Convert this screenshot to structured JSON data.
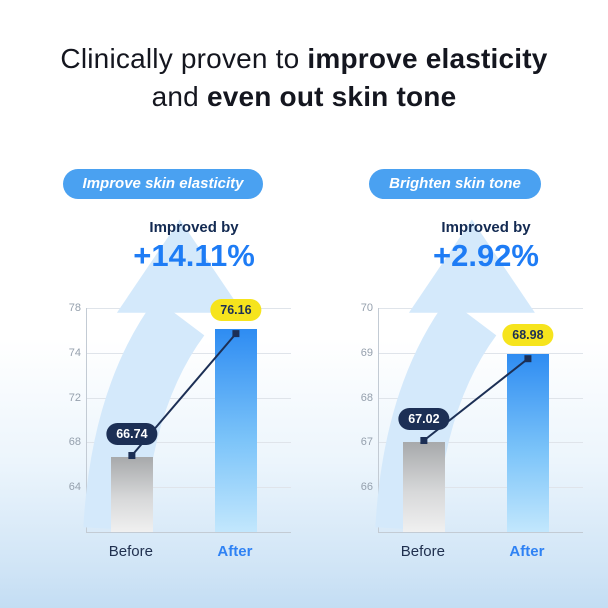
{
  "title": {
    "l1a": "Clinically proven to ",
    "l1b": "improve elasticity",
    "l2a": "and ",
    "l2b": "even out skin tone"
  },
  "colors": {
    "accent_blue": "#1e7cf5",
    "badge_blue": "#4aa1f1",
    "navy": "#1c2f55",
    "yellow": "#f6e41d",
    "bar_gray_top": "#a7a9ab",
    "bar_gray_bottom": "#f0f0f0",
    "bar_blue_top": "#2e8cf2",
    "bar_blue_bottom": "#c2e7fd",
    "arrow_blue": "#d4e9fb",
    "grid": "#dfe4ea",
    "axis": "#c3cbd4",
    "tick_text": "#95a0ad"
  },
  "chart_data": [
    {
      "type": "bar",
      "badge": "Improve skin elasticity",
      "improved_by": "Improved by",
      "improvement": "+14.11%",
      "categories": [
        "Before",
        "After"
      ],
      "values": [
        66.74,
        76.16
      ],
      "value_labels": [
        "66.74",
        "76.16"
      ],
      "yticks": [
        78,
        74,
        72,
        68,
        64
      ],
      "ylim": [
        60,
        78
      ],
      "grid": true,
      "legend": "none"
    },
    {
      "type": "bar",
      "badge": "Brighten skin tone",
      "improved_by": "Improved by",
      "improvement": "+2.92%",
      "categories": [
        "Before",
        "After"
      ],
      "values": [
        67.02,
        68.98
      ],
      "value_labels": [
        "67.02",
        "68.98"
      ],
      "yticks": [
        70,
        69,
        68,
        67,
        66
      ],
      "ylim": [
        65,
        70
      ],
      "grid": true,
      "legend": "none"
    }
  ]
}
